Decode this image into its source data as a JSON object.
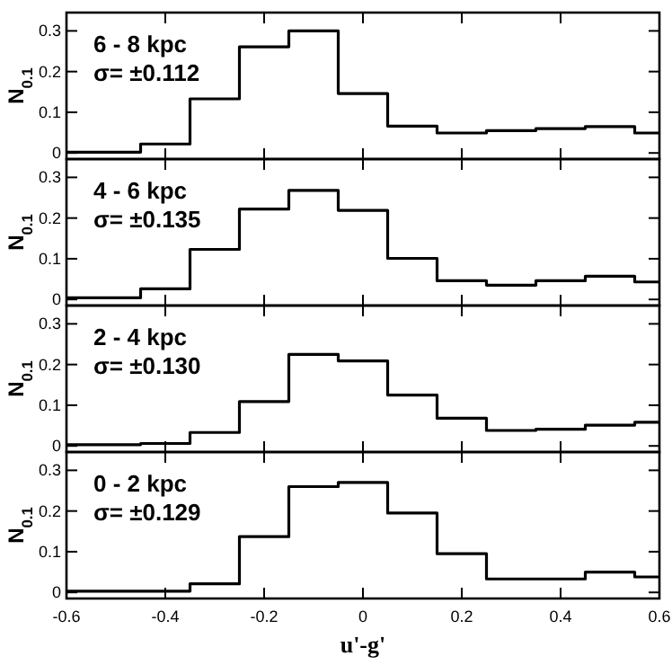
{
  "chart_data": [
    {
      "type": "histogram",
      "bins": [
        -0.6,
        -0.45,
        -0.35,
        -0.25,
        -0.15,
        -0.05,
        0.05,
        0.15,
        0.25,
        0.35,
        0.45,
        0.55,
        0.6
      ],
      "values": [
        0.002,
        0.022,
        0.133,
        0.261,
        0.3,
        0.146,
        0.066,
        0.049,
        0.055,
        0.06,
        0.065,
        0.049
      ],
      "color": "#000000",
      "ylabel": "N$_{0.1}$",
      "annotations": [
        "6 - 8 kpc",
        "σ= ±0.112"
      ],
      "xlim": [
        -0.6,
        0.6
      ],
      "xticks": [
        -0.6,
        -0.4,
        -0.2,
        0,
        0.2,
        0.4,
        0.6
      ],
      "ylim": [
        -0.015,
        0.345
      ],
      "yticks": [
        0,
        0.1,
        0.2,
        0.3
      ],
      "tick_labels": "y"
    },
    {
      "type": "histogram",
      "bins": [
        -0.6,
        -0.45,
        -0.35,
        -0.25,
        -0.15,
        -0.05,
        0.05,
        0.15,
        0.25,
        0.35,
        0.45,
        0.55,
        0.6
      ],
      "values": [
        0.004,
        0.026,
        0.123,
        0.222,
        0.268,
        0.219,
        0.101,
        0.046,
        0.035,
        0.046,
        0.057,
        0.043
      ],
      "color": "#000000",
      "ylabel": "N$_{0.1}$",
      "annotations": [
        "4 - 6 kpc",
        "σ= ±0.135"
      ],
      "xlim": [
        -0.6,
        0.6
      ],
      "xticks": [
        -0.6,
        -0.4,
        -0.2,
        0,
        0.2,
        0.4,
        0.6
      ],
      "ylim": [
        -0.015,
        0.345
      ],
      "yticks": [
        0,
        0.1,
        0.2,
        0.3
      ],
      "tick_labels": "y"
    },
    {
      "type": "histogram",
      "bins": [
        -0.6,
        -0.45,
        -0.35,
        -0.25,
        -0.15,
        -0.05,
        0.05,
        0.15,
        0.25,
        0.35,
        0.45,
        0.55,
        0.6
      ],
      "values": [
        0.003,
        0.006,
        0.033,
        0.109,
        0.225,
        0.209,
        0.125,
        0.068,
        0.038,
        0.041,
        0.051,
        0.058
      ],
      "color": "#000000",
      "ylabel": "N$_{0.1}$",
      "annotations": [
        "2 - 4 kpc",
        "σ= ±0.130"
      ],
      "xlim": [
        -0.6,
        0.6
      ],
      "xticks": [
        -0.6,
        -0.4,
        -0.2,
        0,
        0.2,
        0.4,
        0.6
      ],
      "ylim": [
        -0.015,
        0.345
      ],
      "yticks": [
        0,
        0.1,
        0.2,
        0.3
      ],
      "tick_labels": "y"
    },
    {
      "type": "histogram",
      "bins": [
        -0.6,
        -0.45,
        -0.35,
        -0.25,
        -0.15,
        -0.05,
        0.05,
        0.15,
        0.25,
        0.35,
        0.45,
        0.55,
        0.6
      ],
      "values": [
        0.003,
        0.003,
        0.021,
        0.137,
        0.26,
        0.27,
        0.195,
        0.095,
        0.033,
        0.033,
        0.05,
        0.038
      ],
      "color": "#000000",
      "ylabel": "N$_{0.1}$",
      "xlabel": "u'-g'",
      "annotations": [
        "0 - 2 kpc",
        "σ= ±0.129"
      ],
      "xlim": [
        -0.6,
        0.6
      ],
      "xticks": [
        -0.6,
        -0.4,
        -0.2,
        0,
        0.2,
        0.4,
        0.6
      ],
      "ylim": [
        -0.015,
        0.345
      ],
      "yticks": [
        0,
        0.1,
        0.2,
        0.3
      ]
    }
  ]
}
